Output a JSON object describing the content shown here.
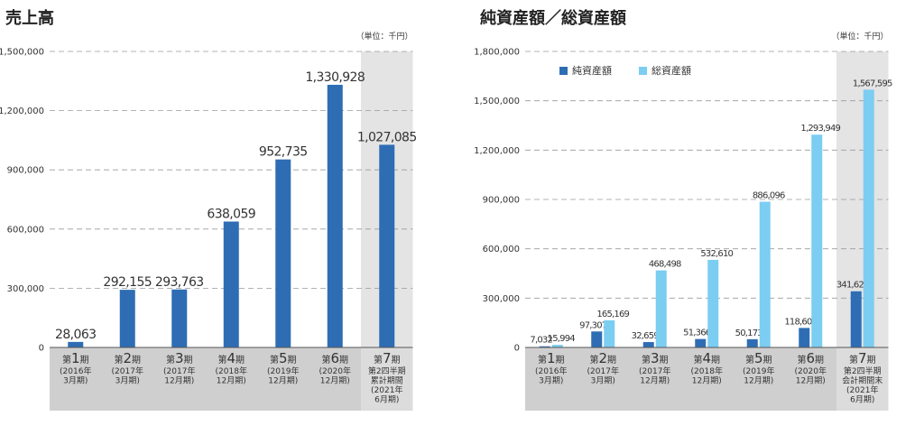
{
  "chart_data": [
    {
      "type": "bar",
      "title": "売上高",
      "unit_note": "（単位：千円）",
      "ylim": [
        0,
        1500000
      ],
      "yticks": [
        0,
        300000,
        600000,
        900000,
        1200000,
        1500000
      ],
      "ytick_labels": [
        "0",
        "300,000",
        "600,000",
        "900,000",
        "1,200,000",
        "1,500,000"
      ],
      "grid": true,
      "categories": [
        {
          "pre": "第",
          "num": "1",
          "post": "期",
          "sub": [
            "(2016年",
            "3月期)"
          ]
        },
        {
          "pre": "第",
          "num": "2",
          "post": "期",
          "sub": [
            "(2017年",
            "3月期)"
          ]
        },
        {
          "pre": "第",
          "num": "3",
          "post": "期",
          "sub": [
            "(2017年",
            "12月期)"
          ]
        },
        {
          "pre": "第",
          "num": "4",
          "post": "期",
          "sub": [
            "(2018年",
            "12月期)"
          ]
        },
        {
          "pre": "第",
          "num": "5",
          "post": "期",
          "sub": [
            "(2019年",
            "12月期)"
          ]
        },
        {
          "pre": "第",
          "num": "6",
          "post": "期",
          "sub": [
            "(2020年",
            "12月期)"
          ]
        },
        {
          "pre": "第",
          "num": "7",
          "post": "期",
          "sub": [
            "第2四半期",
            "累計期間",
            "(2021年",
            "6月期)"
          ]
        }
      ],
      "highlight_index": 6,
      "series": [
        {
          "color": "#2e6db4",
          "values": [
            28063,
            292155,
            293763,
            638059,
            952735,
            1330928,
            1027085
          ],
          "labels": [
            "28,063",
            "292,155",
            "293,763",
            "638,059",
            "952,735",
            "1,330,928",
            "1,027,085"
          ]
        }
      ]
    },
    {
      "type": "bar",
      "title": "純資産額／総資産額",
      "unit_note": "（単位：千円）",
      "ylim": [
        0,
        1800000
      ],
      "yticks": [
        0,
        300000,
        600000,
        900000,
        1200000,
        1500000,
        1800000
      ],
      "ytick_labels": [
        "0",
        "300,000",
        "600,000",
        "900,000",
        "1,200,000",
        "1,500,000",
        "1,800,000"
      ],
      "grid": true,
      "legend_placement": "top-left",
      "categories": [
        {
          "pre": "第",
          "num": "1",
          "post": "期",
          "sub": [
            "(2016年",
            "3月期)"
          ]
        },
        {
          "pre": "第",
          "num": "2",
          "post": "期",
          "sub": [
            "(2017年",
            "3月期)"
          ]
        },
        {
          "pre": "第",
          "num": "3",
          "post": "期",
          "sub": [
            "(2017年",
            "12月期)"
          ]
        },
        {
          "pre": "第",
          "num": "4",
          "post": "期",
          "sub": [
            "(2018年",
            "12月期)"
          ]
        },
        {
          "pre": "第",
          "num": "5",
          "post": "期",
          "sub": [
            "(2019年",
            "12月期)"
          ]
        },
        {
          "pre": "第",
          "num": "6",
          "post": "期",
          "sub": [
            "(2020年",
            "12月期)"
          ]
        },
        {
          "pre": "第",
          "num": "7",
          "post": "期",
          "sub": [
            "第2四半期",
            "会計期間末",
            "(2021年",
            "6月期)"
          ]
        }
      ],
      "highlight_index": 6,
      "series": [
        {
          "name": "純資産額",
          "color": "#2e6db4",
          "values": [
            7032,
            97307,
            32659,
            51366,
            50173,
            118608,
            341624
          ],
          "labels": [
            "7,032",
            "97,307",
            "32,659",
            "51,366",
            "50,173",
            "118,608",
            "341,624"
          ]
        },
        {
          "name": "総資産額",
          "color": "#7ccdf2",
          "values": [
            15994,
            165169,
            468498,
            532610,
            886096,
            1293949,
            1567595
          ],
          "labels": [
            "15,994",
            "165,169",
            "468,498",
            "532,610",
            "886,096",
            "1,293,949",
            "1,567,595"
          ]
        }
      ]
    }
  ]
}
